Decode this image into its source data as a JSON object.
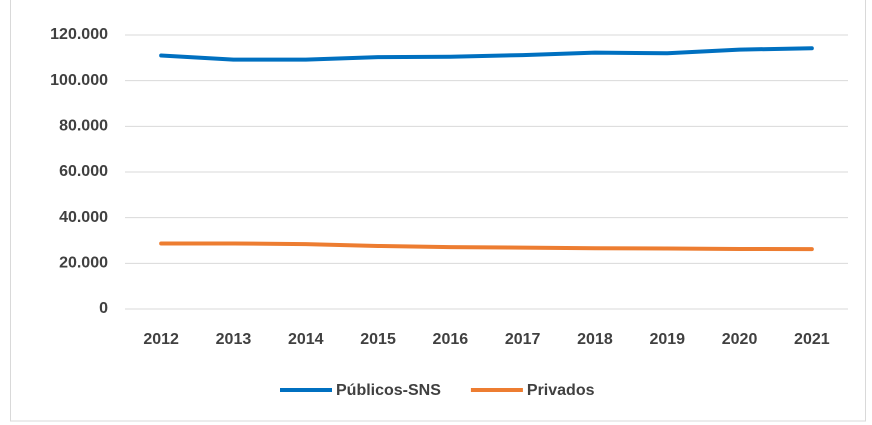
{
  "chart_data": {
    "type": "line",
    "categories": [
      "2012",
      "2013",
      "2014",
      "2015",
      "2016",
      "2017",
      "2018",
      "2019",
      "2020",
      "2021"
    ],
    "series": [
      {
        "name": "Públicos-SNS",
        "color": "#0070c0",
        "values": [
          111000,
          109200,
          109200,
          110300,
          110500,
          111200,
          112300,
          112000,
          113600,
          114200
        ]
      },
      {
        "name": "Privados",
        "color": "#ed7d31",
        "values": [
          28700,
          28700,
          28400,
          27600,
          27100,
          26900,
          26600,
          26500,
          26300,
          26200
        ]
      }
    ],
    "ylim": [
      0,
      120000
    ],
    "yticks": [
      0,
      {
        "value": 20000,
        "label": "20.000"
      },
      {
        "value": 40000,
        "label": "40.000"
      },
      {
        "value": 60000,
        "label": "60.000"
      },
      {
        "value": 80000,
        "label": "80.000"
      },
      {
        "value": 100000,
        "label": "100.000"
      },
      {
        "value": 120000,
        "label": "120.000"
      }
    ],
    "grid": true,
    "legend": "bottom"
  }
}
